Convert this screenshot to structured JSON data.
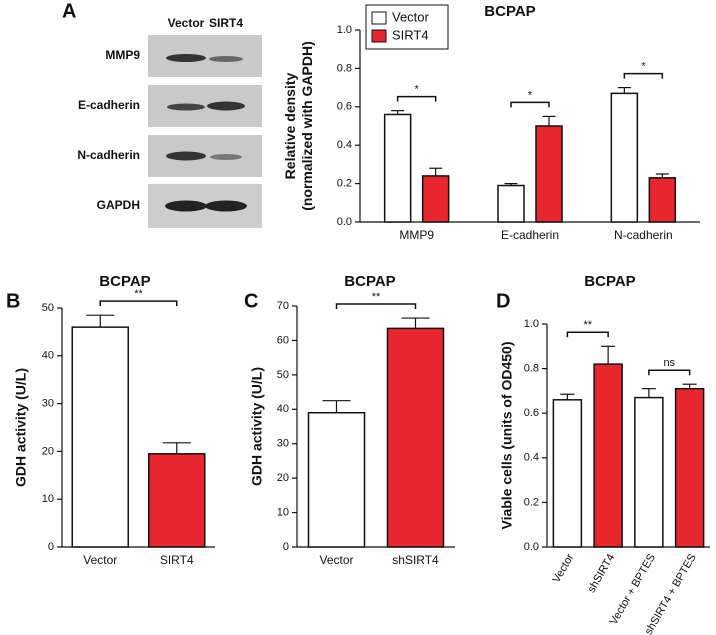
{
  "panels": [
    "A",
    "B",
    "C",
    "D"
  ],
  "blot": {
    "columns": [
      "Vector",
      "SIRT4"
    ],
    "rows": [
      "MMP9",
      "E-cadherin",
      "N-cadherin",
      "GAPDH"
    ]
  },
  "chart_data": [
    {
      "type": "bar",
      "title": "BCPAP",
      "ylabel": [
        "Relative density",
        "(normalized with GAPDH)"
      ],
      "categories": [
        "MMP9",
        "E-cadherin",
        "N-cadherin"
      ],
      "series": [
        {
          "name": "Vector",
          "color": "#ffffff",
          "values": [
            0.56,
            0.19,
            0.67
          ],
          "errors": [
            0.02,
            0.01,
            0.03
          ]
        },
        {
          "name": "SIRT4",
          "color": "#e8262d",
          "values": [
            0.24,
            0.5,
            0.23
          ],
          "errors": [
            0.04,
            0.05,
            0.02
          ]
        }
      ],
      "ylim": [
        0,
        1.0
      ],
      "yticks": [
        {
          "value": 0,
          "label": "0.0"
        },
        0.2,
        0.4,
        0.6,
        0.8,
        {
          "value": 1.0,
          "label": "1.0"
        }
      ],
      "annotations": [
        "*",
        "*",
        "*"
      ],
      "legend": "top-left"
    },
    {
      "type": "bar",
      "title": "BCPAP",
      "ylabel": [
        "GDH activity (U/L)"
      ],
      "categories": [
        "Vector",
        "SIRT4"
      ],
      "values": [
        46,
        19.5
      ],
      "errors": [
        2.5,
        2.3
      ],
      "colors": [
        "#ffffff",
        "#e8262d"
      ],
      "ylim": [
        0,
        50
      ],
      "yticks": [
        0,
        10,
        20,
        30,
        40,
        50
      ],
      "annotations": [
        "**"
      ]
    },
    {
      "type": "bar",
      "title": "BCPAP",
      "ylabel": [
        "GDH activity (U/L)"
      ],
      "categories": [
        "Vector",
        "shSIRT4"
      ],
      "values": [
        39,
        63.5
      ],
      "errors": [
        3.5,
        3
      ],
      "colors": [
        "#ffffff",
        "#e8262d"
      ],
      "ylim": [
        0,
        70
      ],
      "yticks": [
        0,
        10,
        20,
        30,
        40,
        50,
        60,
        70
      ],
      "annotations": [
        "**"
      ]
    },
    {
      "type": "bar",
      "title": "BCPAP",
      "ylabel": [
        "Viable cells (units of OD450)"
      ],
      "categories": [
        "Vector",
        "shSIRT4",
        "Vector + BPTES",
        "shSIRT4 + BPTES"
      ],
      "values": [
        0.66,
        0.82,
        0.67,
        0.71
      ],
      "errors": [
        0.025,
        0.08,
        0.04,
        0.02
      ],
      "colors": [
        "#ffffff",
        "#e8262d",
        "#ffffff",
        "#e8262d"
      ],
      "ylim": [
        0,
        1.0
      ],
      "yticks": [
        {
          "value": 0,
          "label": "0.0"
        },
        0.2,
        0.4,
        0.6,
        0.8,
        {
          "value": 1.0,
          "label": "1.0"
        }
      ],
      "annotations": [
        "**",
        "ns"
      ]
    }
  ]
}
